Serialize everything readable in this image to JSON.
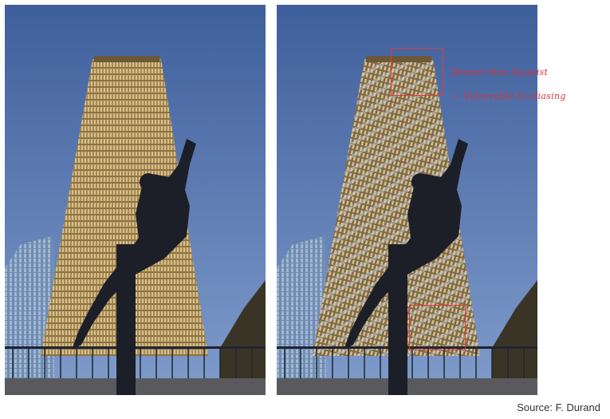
{
  "annotations": {
    "line1": "Denser than Nyquist",
    "line2": "→ Vulnerable to aliasing"
  },
  "caption": {
    "source": "Source: F. Durand"
  },
  "colors": {
    "sky": "#4e6fa8",
    "tower": "#b59760",
    "annotation": "#e03a3a"
  }
}
